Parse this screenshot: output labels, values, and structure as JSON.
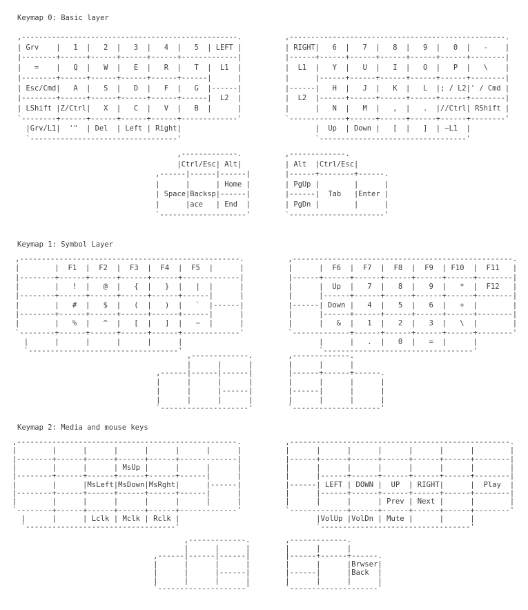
{
  "page": {
    "background": "#ffffff",
    "text_color": "#3c3c3c"
  },
  "keymaps": [
    {
      "title": "Keymap 0: Basic layer",
      "main_art": [
        ",--------------------------------------------------.          ,--------------------------------------------------.",
        "| Grv    |   1  |   2  |   3  |   4  |   5  | LEFT |          | RIGHT|   6  |   7  |   8  |   9  |   0  |   -    |",
        "|--------+------+------+------+------+-------------|          |------+------+------+------+------+------+--------|",
        "|   =    |   Q  |   W  |   E  |   R  |   T  |  L1  |          |  L1  |   Y  |   U  |   I  |   O  |   P  |   \\    |",
        "|--------+------+------+------+------+------|      |          |      |------+------+------+------+------+--------|",
        "| Esc/Cmd|   A  |   S  |   D  |   F  |   G  |------|          |------|   H  |   J  |   K  |   L  |; / L2|' / Cmd |",
        "|--------+------+------+------+------+------|  L2  |          |  L2  |------+------+------+------+------+--------|",
        "| LShift |Z/Ctrl|   X  |   C  |   V  |   B  |      |          |      |   N  |   M  |   ,  |   .  |//Ctrl| RShift |",
        "`--------+------+------+------+------+-------------'          `-------------+------+------+------+------+--------'",
        "  |Grv/L1|  '\"  | Del  | Left | Right|                               |  Up  | Down |   [  |   ]  | ~L1  |",
        "  `----------------------------------'                               `----------------------------------'"
      ],
      "thumb_art": [
        "                                     ,-------------.          ,-------------.",
        "                                     |Ctrl/Esc| Alt|          | Alt  |Ctrl/Esc|",
        "                                ,------|------|------|        |------+--------+------.",
        "                                |      |      | Home |        | PgUp |        |      |",
        "                                | Space|Backsp|------|        |------|  Tab   |Enter |",
        "                                |      |ace   | End  |        | PgDn |        |      |",
        "                                `--------------------'        `----------------------'"
      ]
    },
    {
      "title": "Keymap 1: Symbol Layer",
      "main_art": [
        ",--------------------------------------------------.          ,--------------------------------------------------.",
        "|        |  F1  |  F2  |  F3  |  F4  |  F5  |      |          |      |  F6  |  F7  |  F8  |  F9  | F10  |  F11   |",
        "|--------+------+------+------+------+-------------|          |------+------+------+------+------+------+--------|",
        "|        |   !  |   @  |   {  |   }  |   |  |      |          |      |  Up  |   7  |   8  |   9  |   *  |  F12   |",
        "|--------+------+------+------+------+------|      |          |      |------+------+------+------+------+--------|",
        "|        |   #  |   $  |   (  |   )  |   `  |------|          |------| Down |   4  |   5  |   6  |   +  |        |",
        "|--------+------+------+------+------+------|      |          |      |------+------+------+------+------+--------|",
        "|        |   %  |   ^  |   [  |   ]  |   ~  |      |          |      |   &  |   1  |   2  |   3  |   \\  |        |",
        "`--------+------+------+------+------+-------------'          `-------------+------+------+------+------+--------'",
        "  |      |      |      |      |      |                               |      |   .  |   0  |   =  |      |",
        "  `----------------------------------'                               `----------------------------------'"
      ],
      "thumb_art": [
        "                                       ,-------------.        ,-------------.",
        "                                       |      |      |        |      |      |",
        "                                ,------|------|------|        |------+------+------.",
        "                                |      |      |      |        |      |      |      |",
        "                                |      |      |------|        |------|      |      |",
        "                                |      |      |      |        |      |      |      |",
        "                                `--------------------'        `--------------------'"
      ]
    },
    {
      "title": "Keymap 2: Media and mouse keys",
      "main_art": [
        ",--------------------------------------------------.          ,--------------------------------------------------.",
        "|        |      |      |      |      |      |      |          |      |      |      |      |      |      |        |",
        "|--------+------+------+------+------+-------------|          |------+------+------+------+------+------+--------|",
        "|        |      |      | MsUp |      |      |      |          |      |      |      |      |      |      |        |",
        "|--------+------+------+------+------+------|      |          |      |------+------+------+------+------+--------|",
        "|        |      |MsLeft|MsDown|MsRght|      |------|          |------| LEFT | DOWN |  UP  | RIGHT|      |  Play  |",
        "|--------+------+------+------+------+------|      |          |      |------+------+------+------+------+--------|",
        "|        |      |      |      |      |      |      |          |      |      |      | Prev | Next |      |        |",
        "`--------+------+------+------+------+-------------'          `-------------+------+------+------+------+--------'",
        "  |      |      | Lclk | Mclk | Rclk |                               |VolUp |VolDn | Mute |      |      |",
        "  `----------------------------------'                               `----------------------------------'"
      ],
      "thumb_art": [
        "                                       ,-------------.        ,-------------.",
        "                                       |      |      |        |      |      |",
        "                                ,------|------|------|        |------+------+------.",
        "                                |      |      |      |        |      |      |Brwser|",
        "                                |      |      |------|        |------|      |Back  |",
        "                                |      |      |      |        |      |      |      |",
        "                                `--------------------'        `--------------------'"
      ]
    }
  ]
}
